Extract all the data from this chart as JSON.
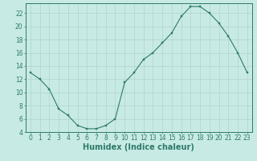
{
  "x": [
    0,
    1,
    2,
    3,
    4,
    5,
    6,
    7,
    8,
    9,
    10,
    11,
    12,
    13,
    14,
    15,
    16,
    17,
    18,
    19,
    20,
    21,
    22,
    23
  ],
  "y": [
    13,
    12,
    10.5,
    7.5,
    6.5,
    5,
    4.5,
    4.5,
    5,
    6,
    11.5,
    13,
    15,
    16,
    17.5,
    19,
    21.5,
    23,
    23,
    22,
    20.5,
    18.5,
    16,
    13
  ],
  "line_color": "#2d7a6a",
  "marker": "s",
  "marker_size": 2.0,
  "bg_color": "#c8eae4",
  "grid_color": "#aacfc8",
  "xlabel": "Humidex (Indice chaleur)",
  "xlim": [
    -0.5,
    23.5
  ],
  "ylim": [
    4,
    23.5
  ],
  "yticks": [
    4,
    6,
    8,
    10,
    12,
    14,
    16,
    18,
    20,
    22
  ],
  "xticks": [
    0,
    1,
    2,
    3,
    4,
    5,
    6,
    7,
    8,
    9,
    10,
    11,
    12,
    13,
    14,
    15,
    16,
    17,
    18,
    19,
    20,
    21,
    22,
    23
  ],
  "tick_fontsize": 5.5,
  "label_fontsize": 7,
  "axis_color": "#2d7a6a"
}
